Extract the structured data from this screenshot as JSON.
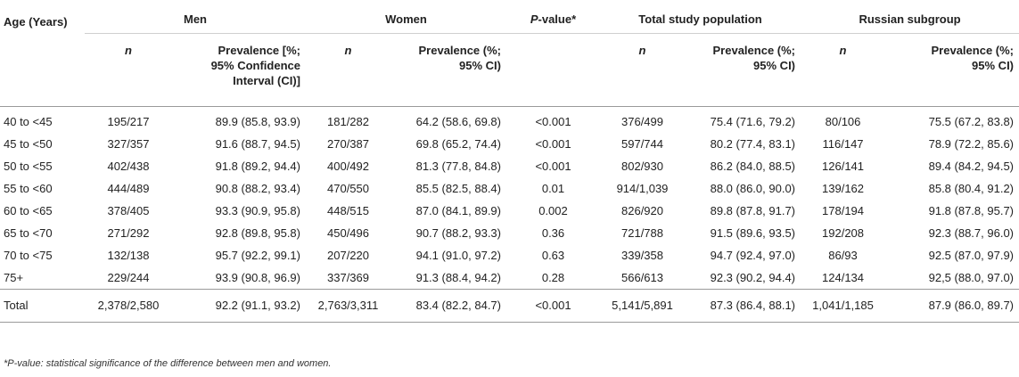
{
  "groups": {
    "men": "Men",
    "women": "Women",
    "pvalue_italic": "P",
    "pvalue_rest": "-value*",
    "total": "Total study population",
    "russian": "Russian subgroup"
  },
  "subheaders": {
    "age": "Age (Years)",
    "n": "n",
    "men_prev_line1": "Prevalence [%;",
    "men_prev_line2": "95% Confidence",
    "men_prev_line3": "Interval (CI)]",
    "prev_line1": "Prevalence (%;",
    "prev_line2": "95% CI)"
  },
  "rows": [
    {
      "age": "40 to <45",
      "men_n": "195/217",
      "men_prev": "89.9 (85.8, 93.9)",
      "women_n": "181/282",
      "women_prev": "64.2 (58.6, 69.8)",
      "p": "<0.001",
      "total_n": "376/499",
      "total_prev": "75.4 (71.6, 79.2)",
      "ru_n": "80/106",
      "ru_prev": "75.5 (67.2, 83.8)"
    },
    {
      "age": "45 to <50",
      "men_n": "327/357",
      "men_prev": "91.6 (88.7, 94.5)",
      "women_n": "270/387",
      "women_prev": "69.8 (65.2, 74.4)",
      "p": "<0.001",
      "total_n": "597/744",
      "total_prev": "80.2 (77.4, 83.1)",
      "ru_n": "116/147",
      "ru_prev": "78.9 (72.2, 85.6)"
    },
    {
      "age": "50 to <55",
      "men_n": "402/438",
      "men_prev": "91.8 (89.2, 94.4)",
      "women_n": "400/492",
      "women_prev": "81.3 (77.8, 84.8)",
      "p": "<0.001",
      "total_n": "802/930",
      "total_prev": "86.2 (84.0, 88.5)",
      "ru_n": "126/141",
      "ru_prev": "89.4 (84.2, 94.5)"
    },
    {
      "age": "55 to <60",
      "men_n": "444/489",
      "men_prev": "90.8 (88.2, 93.4)",
      "women_n": "470/550",
      "women_prev": "85.5 (82.5, 88.4)",
      "p": "0.01",
      "total_n": "914/1,039",
      "total_prev": "88.0 (86.0, 90.0)",
      "ru_n": "139/162",
      "ru_prev": "85.8 (80.4, 91.2)"
    },
    {
      "age": "60 to <65",
      "men_n": "378/405",
      "men_prev": "93.3 (90.9, 95.8)",
      "women_n": "448/515",
      "women_prev": "87.0 (84.1, 89.9)",
      "p": "0.002",
      "total_n": "826/920",
      "total_prev": "89.8 (87.8, 91.7)",
      "ru_n": "178/194",
      "ru_prev": "91.8 (87.8, 95.7)"
    },
    {
      "age": "65 to <70",
      "men_n": "271/292",
      "men_prev": "92.8 (89.8, 95.8)",
      "women_n": "450/496",
      "women_prev": "90.7 (88.2, 93.3)",
      "p": "0.36",
      "total_n": "721/788",
      "total_prev": "91.5 (89.6, 93.5)",
      "ru_n": "192/208",
      "ru_prev": "92.3 (88.7, 96.0)"
    },
    {
      "age": "70 to <75",
      "men_n": "132/138",
      "men_prev": "95.7 (92.2, 99.1)",
      "women_n": "207/220",
      "women_prev": "94.1 (91.0, 97.2)",
      "p": "0.63",
      "total_n": "339/358",
      "total_prev": "94.7 (92.4, 97.0)",
      "ru_n": "86/93",
      "ru_prev": "92.5 (87.0, 97.9)"
    },
    {
      "age": "75+",
      "men_n": "229/244",
      "men_prev": "93.9 (90.8, 96.9)",
      "women_n": "337/369",
      "women_prev": "91.3 (88.4, 94.2)",
      "p": "0.28",
      "total_n": "566/613",
      "total_prev": "92.3 (90.2, 94.4)",
      "ru_n": "124/134",
      "ru_prev": "92,5 (88.0, 97.0)"
    }
  ],
  "total": {
    "age": "Total",
    "men_n": "2,378/2,580",
    "men_prev": "92.2 (91.1, 93.2)",
    "women_n": "2,763/3,311",
    "women_prev": "83.4 (82.2, 84.7)",
    "p": "<0.001",
    "total_n": "5,141/5,891",
    "total_prev": "87.3 (86.4, 88.1)",
    "ru_n": "1,041/1,185",
    "ru_prev": "87.9 (86.0, 89.7)"
  },
  "footnote": "*P-value: statistical significance of the difference between men and women."
}
